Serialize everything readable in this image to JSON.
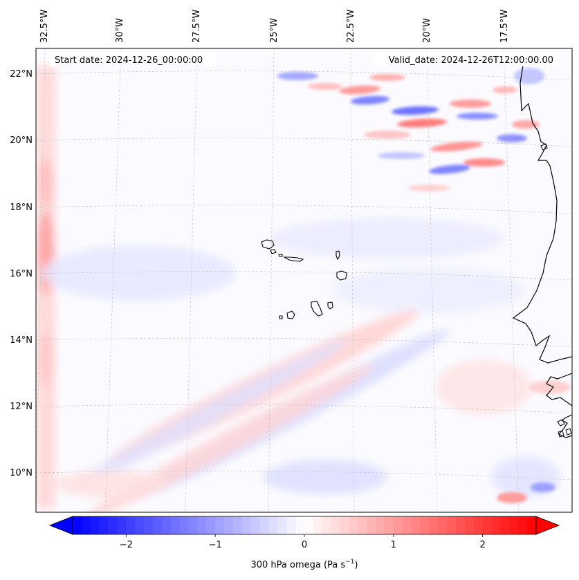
{
  "header": {
    "start_date": "Start date: 2024-12-26_00:00:00",
    "valid_date": "Valid_date: 2024-12-26T12:00:00.00"
  },
  "map": {
    "projection": "lambert-conformal",
    "lon_labels": [
      "32.5°W",
      "30°W",
      "27.5°W",
      "25°W",
      "22.5°W",
      "20°W",
      "17.5°W"
    ],
    "lat_labels": [
      "22°N",
      "20°N",
      "18°N",
      "16°N",
      "14°N",
      "12°N",
      "10°N"
    ],
    "gridlines": "dashed",
    "coastline_color": "#000000",
    "islands": "Cabo Verde",
    "coast": "West Africa"
  },
  "colorbar": {
    "label": "300 hPa omega (Pa s",
    "label_sup": "−1",
    "label_end": ")",
    "ticks": [
      "−2",
      "−1",
      "0",
      "1",
      "2"
    ],
    "tick_values": [
      -2,
      -1,
      0,
      1,
      2
    ],
    "range": [
      -2.6,
      2.6
    ],
    "cmap": "bwr",
    "low_color": "#0000ff",
    "mid_color": "#ffffff",
    "high_color": "#ff0000",
    "extend": "both"
  }
}
